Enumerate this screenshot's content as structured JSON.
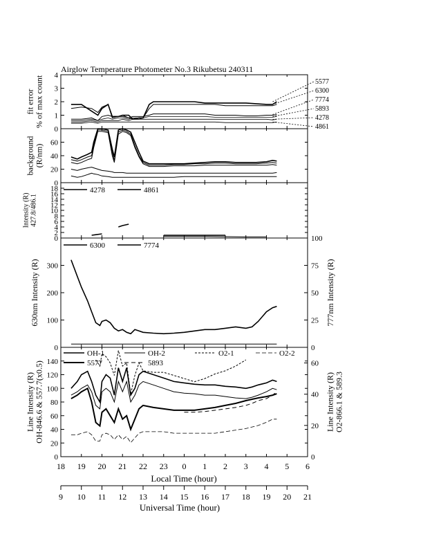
{
  "title": "Airglow Temperature Photometer No.3  Rikubetsu    240311",
  "x_axes": {
    "local": {
      "label": "Local Time (hour)",
      "ticks": [
        "18",
        "19",
        "20",
        "21",
        "22",
        "23",
        "0",
        "1",
        "2",
        "3",
        "4",
        "5",
        "6"
      ]
    },
    "universal": {
      "label": "Universal Time (hour)",
      "ticks": [
        "9",
        "10",
        "11",
        "12",
        "13",
        "14",
        "15",
        "16",
        "17",
        "18",
        "19",
        "20",
        "21"
      ]
    }
  },
  "chart_data": [
    {
      "type": "line",
      "panel": "fit error",
      "ylabel": "fit error\n% of max count",
      "ylim": [
        0,
        4
      ],
      "yticks": [
        "0",
        "1",
        "2",
        "3",
        "4"
      ],
      "right_labels": [
        "5577",
        "6300",
        "7774",
        "5893",
        "4278",
        "4861"
      ],
      "x": [
        18.5,
        19.0,
        19.5,
        19.8,
        20.0,
        20.3,
        20.5,
        20.8,
        21.0,
        21.3,
        21.5,
        21.8,
        22.0,
        22.3,
        22.5,
        23.0,
        23.5,
        24.0,
        24.5,
        25.0,
        25.5,
        26.0,
        26.5,
        27.0,
        27.5,
        28.0,
        28.3,
        28.5
      ],
      "series": [
        {
          "values": [
            1.8,
            1.8,
            1.3,
            1.0,
            1.5,
            1.8,
            0.9,
            0.9,
            1.0,
            1.0,
            0.7,
            0.8,
            0.8,
            1.8,
            2.0,
            2.0,
            2.0,
            2.0,
            2.0,
            1.9,
            1.9,
            1.9,
            1.9,
            1.9,
            1.85,
            1.8,
            1.8,
            2.0
          ]
        },
        {
          "values": [
            1.5,
            1.6,
            1.5,
            1.2,
            1.6,
            1.8,
            0.8,
            0.9,
            1.0,
            0.8,
            0.7,
            0.7,
            0.8,
            1.5,
            1.8,
            1.8,
            1.8,
            1.8,
            1.8,
            1.8,
            1.8,
            1.7,
            1.7,
            1.7,
            1.7,
            1.7,
            1.7,
            1.8
          ]
        },
        {
          "values": [
            0.7,
            0.7,
            0.8,
            0.6,
            0.9,
            1.0,
            0.9,
            0.9,
            0.9,
            0.8,
            0.9,
            0.9,
            0.9,
            1.0,
            1.1,
            1.1,
            1.1,
            1.1,
            1.1,
            1.1,
            1.0,
            1.0,
            1.0,
            0.95,
            0.95,
            1.0,
            1.0,
            1.05
          ]
        },
        {
          "values": [
            0.6,
            0.6,
            0.7,
            0.6,
            0.7,
            0.8,
            0.7,
            0.8,
            0.8,
            0.7,
            0.8,
            0.8,
            0.8,
            0.9,
            0.9,
            0.9,
            0.9,
            0.9,
            0.9,
            0.9,
            0.85,
            0.85,
            0.85,
            0.85,
            0.85,
            0.85,
            0.85,
            0.9
          ]
        },
        {
          "values": [
            0.5,
            0.5,
            0.6,
            0.5,
            0.6,
            0.6,
            0.6,
            0.6,
            0.7,
            0.6,
            0.7,
            0.7,
            0.7,
            0.7,
            0.7,
            0.7,
            0.7,
            0.7,
            0.7,
            0.7,
            0.7,
            0.7,
            0.7,
            0.7,
            0.7,
            0.7,
            0.65,
            0.7
          ]
        },
        {
          "values": [
            0.4,
            0.4,
            0.5,
            0.4,
            0.5,
            0.5,
            0.5,
            0.5,
            0.5,
            0.5,
            0.5,
            0.5,
            0.5,
            0.5,
            0.5,
            0.5,
            0.5,
            0.5,
            0.5,
            0.5,
            0.5,
            0.45,
            0.45,
            0.45,
            0.45,
            0.45,
            0.45,
            0.5
          ]
        }
      ]
    },
    {
      "type": "line",
      "panel": "background",
      "ylabel": "background\n(R/nm)",
      "ylim": [
        0,
        80
      ],
      "yticks": [
        "0",
        "20",
        "40",
        "60"
      ],
      "x": [
        18.5,
        18.8,
        19.0,
        19.3,
        19.5,
        19.6,
        19.8,
        20.0,
        20.3,
        20.5,
        20.6,
        20.8,
        21.0,
        21.2,
        21.4,
        21.6,
        21.8,
        22.0,
        22.3,
        22.5,
        23.0,
        23.5,
        24.0,
        24.5,
        25.0,
        25.5,
        26.0,
        26.5,
        27.0,
        27.5,
        28.0,
        28.3,
        28.5
      ],
      "series": [
        {
          "values": [
            38,
            35,
            38,
            42,
            45,
            60,
            80,
            80,
            78,
            50,
            38,
            78,
            80,
            78,
            75,
            60,
            45,
            32,
            28,
            28,
            28,
            28,
            28,
            29,
            30,
            31,
            31,
            30,
            30,
            30,
            31,
            33,
            32
          ]
        },
        {
          "values": [
            34,
            32,
            34,
            38,
            40,
            55,
            78,
            78,
            76,
            45,
            33,
            75,
            78,
            76,
            72,
            55,
            40,
            30,
            26,
            26,
            26,
            27,
            27,
            28,
            28,
            29,
            29,
            28,
            28,
            28,
            29,
            30,
            29
          ]
        },
        {
          "values": [
            30,
            28,
            30,
            34,
            36,
            52,
            76,
            76,
            74,
            40,
            30,
            72,
            76,
            74,
            70,
            52,
            38,
            28,
            24,
            24,
            24,
            25,
            25,
            25,
            26,
            26,
            26,
            26,
            26,
            26,
            26,
            27,
            26
          ]
        },
        {
          "values": [
            20,
            18,
            20,
            22,
            23,
            22,
            20,
            18,
            17,
            16,
            15,
            15,
            15,
            14,
            14,
            14,
            14,
            14,
            14,
            14,
            14,
            14,
            14,
            14,
            14,
            14,
            14,
            14,
            14,
            14,
            14,
            14,
            15
          ]
        },
        {
          "values": [
            10,
            8,
            9,
            12,
            14,
            13,
            12,
            10,
            9,
            8,
            8,
            8,
            8,
            8,
            8,
            8,
            8,
            8,
            8,
            8,
            8,
            8,
            9,
            9,
            9,
            9,
            9,
            9,
            9,
            9,
            9,
            9,
            9
          ]
        }
      ]
    },
    {
      "type": "line",
      "panel": "intensity 427.8/486.1",
      "ylabel": "Intensity (R)\n427.8/486.1",
      "ylim": [
        0,
        20
      ],
      "yticks": [
        "0",
        "2",
        "4",
        "6",
        "8",
        "10",
        "12",
        "14",
        "16",
        "18"
      ],
      "legend": [
        "4278",
        "4861"
      ],
      "x": [
        18.8,
        19.0,
        19.3,
        19.5,
        19.7,
        20.0,
        20.3,
        20.5,
        20.8,
        21.0,
        21.3,
        22.0,
        23.0,
        24.0,
        25.0,
        26.0,
        27.0,
        27.5,
        28.0,
        28.3
      ],
      "series": [
        {
          "values": [
            null,
            null,
            null,
            1.0,
            1.2,
            1.5,
            null,
            null,
            4.0,
            4.5,
            5.0,
            null,
            1.0,
            1.0,
            1.0,
            1.0,
            null,
            0.8,
            null,
            null
          ]
        },
        {
          "values": [
            null,
            null,
            null,
            null,
            null,
            null,
            null,
            null,
            null,
            null,
            null,
            null,
            0.6,
            0.6,
            0.6,
            0.5,
            0.4,
            0.4,
            0.4,
            null
          ]
        }
      ]
    },
    {
      "type": "line",
      "panel": "630nm / 777nm intensity",
      "ylabel": "630nm Intensity (R)",
      "ylabel_right": "777nm Intensity (R)",
      "ylim": [
        0,
        400
      ],
      "yticks": [
        "0",
        "100",
        "200",
        "300"
      ],
      "ylim_right": [
        0,
        100
      ],
      "yticks_right": [
        "0",
        "25",
        "50",
        "75",
        "100"
      ],
      "legend": [
        "6300",
        "7774"
      ],
      "x": [
        18.5,
        18.8,
        19.0,
        19.3,
        19.5,
        19.7,
        19.9,
        20.0,
        20.2,
        20.4,
        20.6,
        20.8,
        21.0,
        21.2,
        21.4,
        21.6,
        21.8,
        22.0,
        22.5,
        23.0,
        23.5,
        24.0,
        24.5,
        25.0,
        25.5,
        26.0,
        26.5,
        27.0,
        27.3,
        27.6,
        28.0,
        28.3,
        28.5
      ],
      "series": [
        {
          "name": "6300",
          "values": [
            320,
            260,
            220,
            170,
            130,
            90,
            80,
            95,
            100,
            90,
            70,
            60,
            65,
            55,
            50,
            65,
            60,
            55,
            52,
            50,
            52,
            55,
            60,
            65,
            65,
            70,
            75,
            70,
            75,
            95,
            130,
            145,
            150
          ]
        },
        {
          "name": "7774",
          "values": [
            12,
            12,
            12,
            12,
            12,
            12,
            12,
            12,
            12,
            12,
            12,
            12,
            12,
            12,
            12,
            12,
            12,
            12,
            12,
            12,
            12,
            12,
            12,
            12,
            12,
            12,
            12,
            12,
            12,
            12,
            12,
            12,
            12
          ]
        }
      ]
    },
    {
      "type": "line",
      "panel": "line intensity",
      "ylabel": "Line Intensity (R)\nOH-846.6 & 557.7(x0.5)",
      "ylabel_right": "Line Intensity (R)\nO2-866.1 & 589.3",
      "ylim": [
        0,
        160
      ],
      "yticks": [
        "0",
        "20",
        "40",
        "60",
        "80",
        "100",
        "120",
        "140"
      ],
      "ylim_right": [
        0,
        70
      ],
      "yticks_right": [
        "0",
        "20",
        "40",
        "60"
      ],
      "legend": [
        "OH-1",
        "OH-2",
        "O2-1",
        "O2-2",
        "5577",
        "5893"
      ],
      "x": [
        18.5,
        18.8,
        19.0,
        19.3,
        19.5,
        19.7,
        19.9,
        20.0,
        20.2,
        20.4,
        20.6,
        20.8,
        21.0,
        21.2,
        21.4,
        21.6,
        21.8,
        22.0,
        22.5,
        23.0,
        23.5,
        24.0,
        24.5,
        25.0,
        25.5,
        26.0,
        26.5,
        27.0,
        27.3,
        27.6,
        28.0,
        28.3,
        28.5
      ],
      "series": [
        {
          "name": "OH-1",
          "values": [
            100,
            110,
            120,
            125,
            110,
            90,
            80,
            110,
            120,
            115,
            90,
            130,
            110,
            130,
            90,
            100,
            120,
            125,
            120,
            115,
            110,
            108,
            106,
            105,
            105,
            103,
            102,
            100,
            102,
            105,
            108,
            112,
            110
          ]
        },
        {
          "name": "OH-2",
          "values": [
            90,
            95,
            100,
            105,
            95,
            75,
            70,
            95,
            100,
            95,
            80,
            110,
            95,
            110,
            80,
            90,
            105,
            110,
            105,
            100,
            95,
            93,
            92,
            90,
            90,
            88,
            86,
            85,
            87,
            90,
            95,
            100,
            98
          ]
        },
        {
          "name": "O2-1",
          "values": [
            null,
            null,
            null,
            null,
            null,
            62,
            58,
            66,
            64,
            60,
            52,
            68,
            58,
            60,
            40,
            52,
            60,
            55,
            54,
            54,
            52,
            50,
            48,
            50,
            53,
            55,
            58,
            62,
            null,
            null,
            null,
            null,
            null
          ]
        },
        {
          "name": "O2-2",
          "values": [
            14,
            14,
            15,
            16,
            14,
            10,
            10,
            14,
            15,
            14,
            11,
            14,
            11,
            13,
            9,
            12,
            15,
            16,
            16,
            16,
            15,
            15,
            15,
            15,
            15,
            16,
            17,
            18,
            19,
            20,
            22,
            24,
            24
          ]
        },
        {
          "name": "5577",
          "values": [
            85,
            90,
            95,
            100,
            80,
            50,
            45,
            65,
            70,
            60,
            50,
            70,
            55,
            60,
            40,
            55,
            70,
            75,
            72,
            70,
            68,
            68,
            68,
            70,
            72,
            75,
            78,
            82,
            84,
            86,
            88,
            90,
            92
          ]
        },
        {
          "name": "5893",
          "values": [
            null,
            null,
            null,
            null,
            null,
            null,
            null,
            null,
            null,
            null,
            null,
            null,
            null,
            null,
            null,
            null,
            null,
            null,
            null,
            null,
            null,
            65,
            65,
            66,
            68,
            70,
            72,
            75,
            78,
            82,
            85,
            90,
            95
          ]
        }
      ]
    }
  ]
}
